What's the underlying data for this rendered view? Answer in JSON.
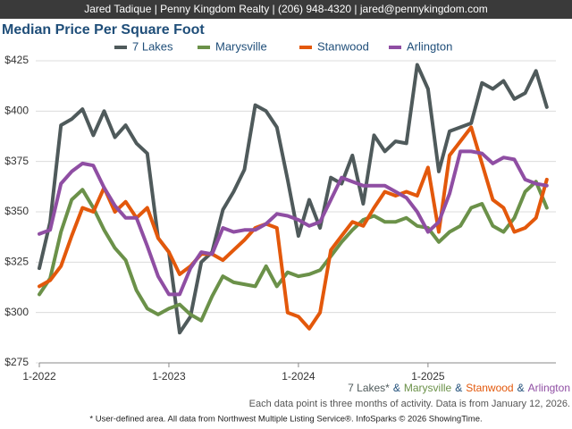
{
  "chart_data": {
    "type": "line",
    "header": "Jared Tadique | Penny Kingdom Realty | (206) 948-4320 | jared@pennykingdom.com",
    "title": "Median Price Per Square Foot",
    "categories": [
      "1-2022",
      null,
      null,
      null,
      null,
      null,
      null,
      null,
      null,
      null,
      null,
      null,
      "1-2023",
      null,
      null,
      null,
      null,
      null,
      null,
      null,
      null,
      null,
      null,
      null,
      "1-2024",
      null,
      null,
      null,
      null,
      null,
      null,
      null,
      null,
      null,
      null,
      null,
      "1-2025",
      null,
      null,
      null,
      null,
      null,
      null,
      null,
      null,
      null,
      null,
      null
    ],
    "ylim": [
      275,
      425
    ],
    "yticks": [
      {
        "value": 275,
        "label": "$275"
      },
      {
        "value": 300,
        "label": "$300"
      },
      {
        "value": 325,
        "label": "$325"
      },
      {
        "value": 350,
        "label": "$350"
      },
      {
        "value": 375,
        "label": "$375"
      },
      {
        "value": 400,
        "label": "$400"
      },
      {
        "value": 425,
        "label": "$425"
      }
    ],
    "grid": true,
    "legend": "top",
    "series": [
      {
        "name": "7 Lakes",
        "color": "#4f5a5b",
        "values": [
          322,
          345,
          393,
          396,
          401,
          388,
          400,
          387,
          393,
          384,
          379,
          337,
          330,
          290,
          298,
          325,
          330,
          351,
          360,
          371,
          403,
          400,
          392,
          366,
          338,
          356,
          342,
          367,
          364,
          378,
          354,
          388,
          380,
          385,
          384,
          423,
          411,
          370,
          390,
          392,
          394,
          414,
          411,
          415,
          406,
          409,
          420,
          402
        ]
      },
      {
        "name": "Marysville",
        "color": "#6b9149",
        "values": [
          309,
          317,
          340,
          356,
          361,
          352,
          341,
          332,
          326,
          311,
          302,
          299,
          302,
          304,
          299,
          296,
          308,
          318,
          315,
          314,
          313,
          323,
          313,
          320,
          318,
          319,
          321,
          328,
          335,
          341,
          346,
          348,
          345,
          345,
          347,
          343,
          342,
          335,
          340,
          343,
          352,
          354,
          343,
          340,
          347,
          360,
          365,
          352
        ]
      },
      {
        "name": "Stanwood",
        "color": "#e3580b",
        "values": [
          313,
          316,
          323,
          338,
          352,
          350,
          362,
          350,
          355,
          347,
          352,
          337,
          330,
          319,
          323,
          329,
          329,
          326,
          331,
          336,
          342,
          344,
          342,
          300,
          298,
          292,
          300,
          331,
          338,
          345,
          343,
          352,
          360,
          358,
          360,
          358,
          372,
          340,
          378,
          385,
          392,
          374,
          356,
          352,
          340,
          342,
          347,
          366
        ]
      },
      {
        "name": "Arlington",
        "color": "#8f4ea3",
        "values": [
          339,
          341,
          364,
          370,
          374,
          373,
          362,
          353,
          347,
          347,
          333,
          318,
          309,
          309,
          322,
          330,
          329,
          342,
          340,
          341,
          341,
          344,
          349,
          348,
          346,
          343,
          345,
          356,
          367,
          365,
          363,
          363,
          363,
          360,
          357,
          350,
          340,
          345,
          359,
          380,
          380,
          379,
          374,
          377,
          376,
          366,
          364,
          363
        ]
      }
    ],
    "caption": [
      "7 Lakes*",
      "&",
      "Marysville",
      "&",
      "Stanwood",
      "&",
      "Arlington"
    ],
    "note": "Each data point is three months of activity. Data is from January 12, 2026.",
    "footnote": "* User-defined area. All data from Northwest Multiple Listing Service®. InfoSparks © 2026 ShowingTime."
  }
}
